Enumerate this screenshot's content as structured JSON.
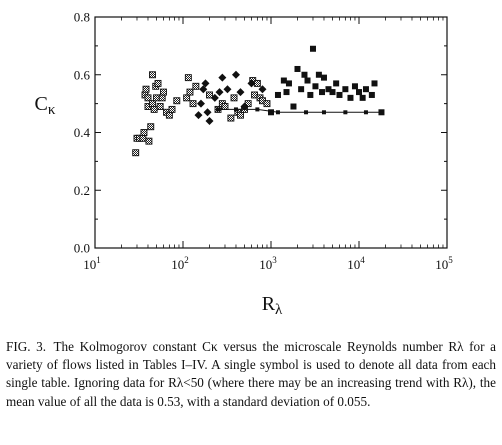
{
  "chart_data": {
    "type": "scatter",
    "xscale": "log",
    "xlim": [
      10,
      100000
    ],
    "ylim": [
      0,
      0.8
    ],
    "xlabel": "Rλ",
    "ylabel": "Cκ",
    "xticks": [
      {
        "value": 10,
        "base": "10",
        "exp": "1"
      },
      {
        "value": 100,
        "base": "10",
        "exp": "2"
      },
      {
        "value": 1000,
        "base": "10",
        "exp": "3"
      },
      {
        "value": 10000,
        "base": "10",
        "exp": "4"
      },
      {
        "value": 100000,
        "base": "10",
        "exp": "5"
      }
    ],
    "yticks": [
      {
        "value": 0.0,
        "label": "0.0"
      },
      {
        "value": 0.2,
        "label": "0.2"
      },
      {
        "value": 0.4,
        "label": "0.4"
      },
      {
        "value": 0.6,
        "label": "0.6"
      },
      {
        "value": 0.8,
        "label": "0.8"
      }
    ],
    "grid": false,
    "series": [
      {
        "marker": "hatched-square",
        "points": [
          [
            29,
            0.33
          ],
          [
            30,
            0.38
          ],
          [
            32,
            0.38
          ],
          [
            35,
            0.38
          ],
          [
            36,
            0.4
          ],
          [
            37,
            0.53
          ],
          [
            38,
            0.55
          ],
          [
            40,
            0.52
          ],
          [
            40,
            0.49
          ],
          [
            41,
            0.37
          ],
          [
            43,
            0.42
          ],
          [
            45,
            0.5
          ],
          [
            45,
            0.6
          ],
          [
            47,
            0.48
          ],
          [
            49,
            0.56
          ],
          [
            50,
            0.52
          ],
          [
            52,
            0.57
          ],
          [
            55,
            0.49
          ],
          [
            58,
            0.52
          ],
          [
            60,
            0.54
          ],
          [
            65,
            0.47
          ],
          [
            70,
            0.46
          ],
          [
            75,
            0.48
          ],
          [
            85,
            0.51
          ],
          [
            110,
            0.52
          ],
          [
            115,
            0.59
          ],
          [
            120,
            0.54
          ],
          [
            130,
            0.5
          ],
          [
            140,
            0.56
          ],
          [
            200,
            0.53
          ],
          [
            250,
            0.48
          ],
          [
            280,
            0.5
          ],
          [
            300,
            0.49
          ],
          [
            350,
            0.45
          ],
          [
            380,
            0.52
          ],
          [
            420,
            0.47
          ],
          [
            450,
            0.46
          ],
          [
            500,
            0.48
          ],
          [
            550,
            0.5
          ],
          [
            620,
            0.58
          ],
          [
            650,
            0.53
          ],
          [
            700,
            0.57
          ],
          [
            750,
            0.52
          ],
          [
            800,
            0.51
          ],
          [
            900,
            0.5
          ]
        ]
      },
      {
        "marker": "diamond",
        "points": [
          [
            150,
            0.46
          ],
          [
            160,
            0.5
          ],
          [
            170,
            0.55
          ],
          [
            180,
            0.57
          ],
          [
            190,
            0.47
          ],
          [
            200,
            0.44
          ],
          [
            230,
            0.52
          ],
          [
            260,
            0.54
          ],
          [
            280,
            0.59
          ],
          [
            320,
            0.55
          ],
          [
            400,
            0.6
          ],
          [
            450,
            0.54
          ],
          [
            500,
            0.49
          ],
          [
            600,
            0.57
          ],
          [
            800,
            0.55
          ]
        ]
      },
      {
        "marker": "filled-square",
        "points": [
          [
            1000,
            0.47
          ],
          [
            1200,
            0.53
          ],
          [
            1400,
            0.58
          ],
          [
            1500,
            0.54
          ],
          [
            1600,
            0.57
          ],
          [
            1800,
            0.49
          ],
          [
            2000,
            0.62
          ],
          [
            2200,
            0.55
          ],
          [
            2400,
            0.6
          ],
          [
            2600,
            0.58
          ],
          [
            2800,
            0.53
          ],
          [
            3000,
            0.69
          ],
          [
            3200,
            0.56
          ],
          [
            3500,
            0.6
          ],
          [
            3800,
            0.54
          ],
          [
            4000,
            0.59
          ],
          [
            4500,
            0.55
          ],
          [
            5000,
            0.54
          ],
          [
            5500,
            0.57
          ],
          [
            6000,
            0.53
          ],
          [
            7000,
            0.55
          ],
          [
            8000,
            0.52
          ],
          [
            9000,
            0.56
          ],
          [
            10000,
            0.54
          ],
          [
            11000,
            0.52
          ],
          [
            12000,
            0.55
          ],
          [
            14000,
            0.53
          ],
          [
            15000,
            0.57
          ],
          [
            18000,
            0.47
          ]
        ]
      },
      {
        "marker": "line-with-small-squares",
        "points": [
          [
            250,
            0.48
          ],
          [
            400,
            0.48
          ],
          [
            700,
            0.48
          ],
          [
            1200,
            0.47
          ],
          [
            2500,
            0.47
          ],
          [
            4000,
            0.47
          ],
          [
            7000,
            0.47
          ],
          [
            12000,
            0.47
          ],
          [
            18000,
            0.47
          ]
        ]
      }
    ]
  },
  "caption": {
    "fig_num": "FIG. 3.",
    "text": "The Kolmogorov constant Cκ versus the microscale Reynolds number Rλ for a variety of flows listed in Tables I–IV. A single symbol is used to denote all data from each single table. Ignoring data for Rλ<50 (where there may be an increasing trend with Rλ), the mean value of all the data is 0.53, with a standard deviation of 0.055."
  }
}
